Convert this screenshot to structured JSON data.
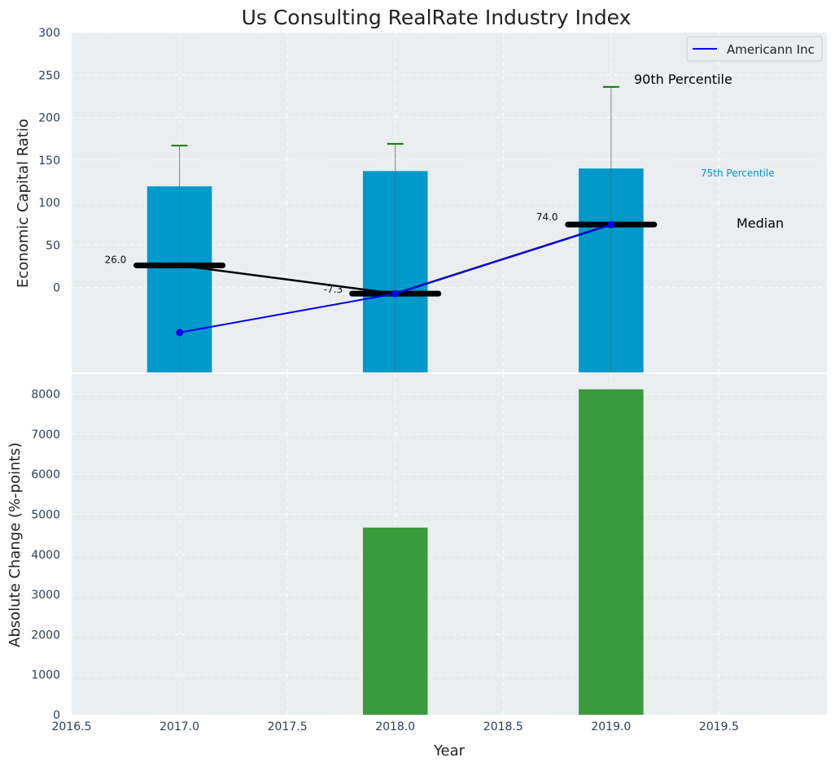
{
  "chart_data": [
    {
      "type": "bar",
      "title": "Us Consulting RealRate Industry Index",
      "ylabel": "Economic Capital Ratio",
      "xlim": [
        2016.5,
        2020.0
      ],
      "ylim": [
        -100,
        300
      ],
      "yticks": [
        0,
        50,
        100,
        150,
        200,
        250,
        300
      ],
      "grid": true,
      "x": [
        2017.0,
        2018.0,
        2019.0
      ],
      "bars": {
        "name": "75th Percentile",
        "values": [
          119,
          137,
          140
        ],
        "color": "#0099cc"
      },
      "whiskers_90th": {
        "name": "90th Percentile",
        "values": [
          167,
          169,
          236
        ],
        "color": "#008000"
      },
      "median": {
        "name": "Median",
        "values": [
          26.0,
          -7.3,
          74.0
        ],
        "labels": [
          "26.0",
          "-7.3",
          "74.0"
        ]
      },
      "series": [
        {
          "name": "Americann Inc",
          "x": [
            2017.0,
            2018.0,
            2019.0
          ],
          "values": [
            -53,
            -7.3,
            74
          ],
          "color": "#0000ee"
        }
      ],
      "annotations": [
        "90th Percentile",
        "75th Percentile",
        "Median"
      ],
      "legend": {
        "position": "top-right",
        "entries": [
          "Americann Inc"
        ]
      }
    },
    {
      "type": "bar",
      "xlabel": "Year",
      "ylabel": "Absolute Change (%-points)",
      "xlim": [
        2016.5,
        2020.0
      ],
      "xticks": [
        2016.5,
        2017.0,
        2017.5,
        2018.0,
        2018.5,
        2019.0,
        2019.5
      ],
      "ylim": [
        0,
        8500
      ],
      "yticks": [
        0,
        1000,
        2000,
        3000,
        4000,
        5000,
        6000,
        7000,
        8000
      ],
      "grid": true,
      "x": [
        2018.0,
        2019.0
      ],
      "values": [
        4670,
        8120
      ],
      "color": "#3a9a3d"
    }
  ]
}
